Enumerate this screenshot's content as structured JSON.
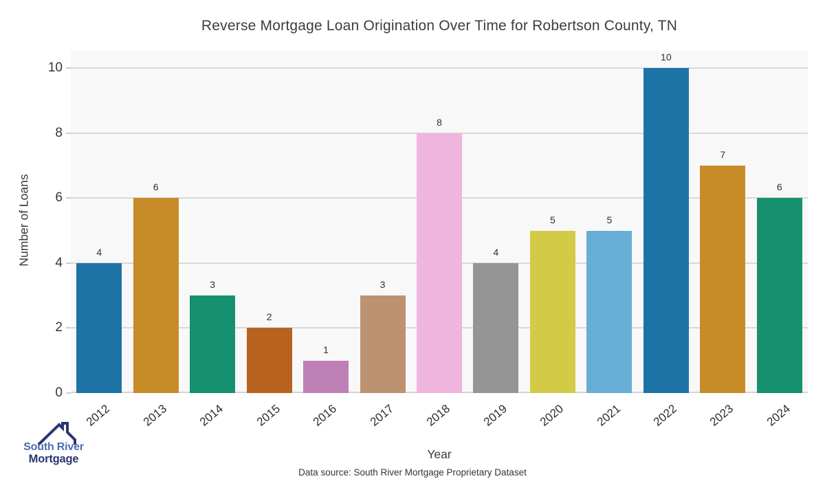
{
  "chart_data": {
    "type": "bar",
    "title": "Reverse Mortgage Loan Origination Over Time for Robertson County, TN",
    "xlabel": "Year",
    "ylabel": "Number of Loans",
    "categories": [
      "2012",
      "2013",
      "2014",
      "2015",
      "2016",
      "2017",
      "2018",
      "2019",
      "2020",
      "2021",
      "2022",
      "2023",
      "2024"
    ],
    "values": [
      4,
      6,
      3,
      2,
      1,
      3,
      8,
      4,
      5,
      5,
      10,
      7,
      6
    ],
    "bar_colors": [
      "#1d73a6",
      "#c78b27",
      "#17906f",
      "#b8621f",
      "#bf80b5",
      "#bd9270",
      "#f0b5de",
      "#959595",
      "#d3ca48",
      "#66aed6",
      "#1d73a6",
      "#c78b27",
      "#17906f"
    ],
    "ylim": [
      0,
      10.5
    ],
    "yticks": [
      0,
      2,
      4,
      6,
      8,
      10
    ],
    "grid": "horizontal",
    "legend": "none",
    "plot_bg_color": "#f8f8f8",
    "gridline_color": "#d8d8d8"
  },
  "footer": {
    "source": "Data source: South River Mortgage Proprietary Dataset"
  },
  "logo": {
    "line1": "South River",
    "line2": "Mortgage",
    "color_line1": "#4a6cb0",
    "color_line2": "#2b3572",
    "house_color": "#2b3572"
  }
}
